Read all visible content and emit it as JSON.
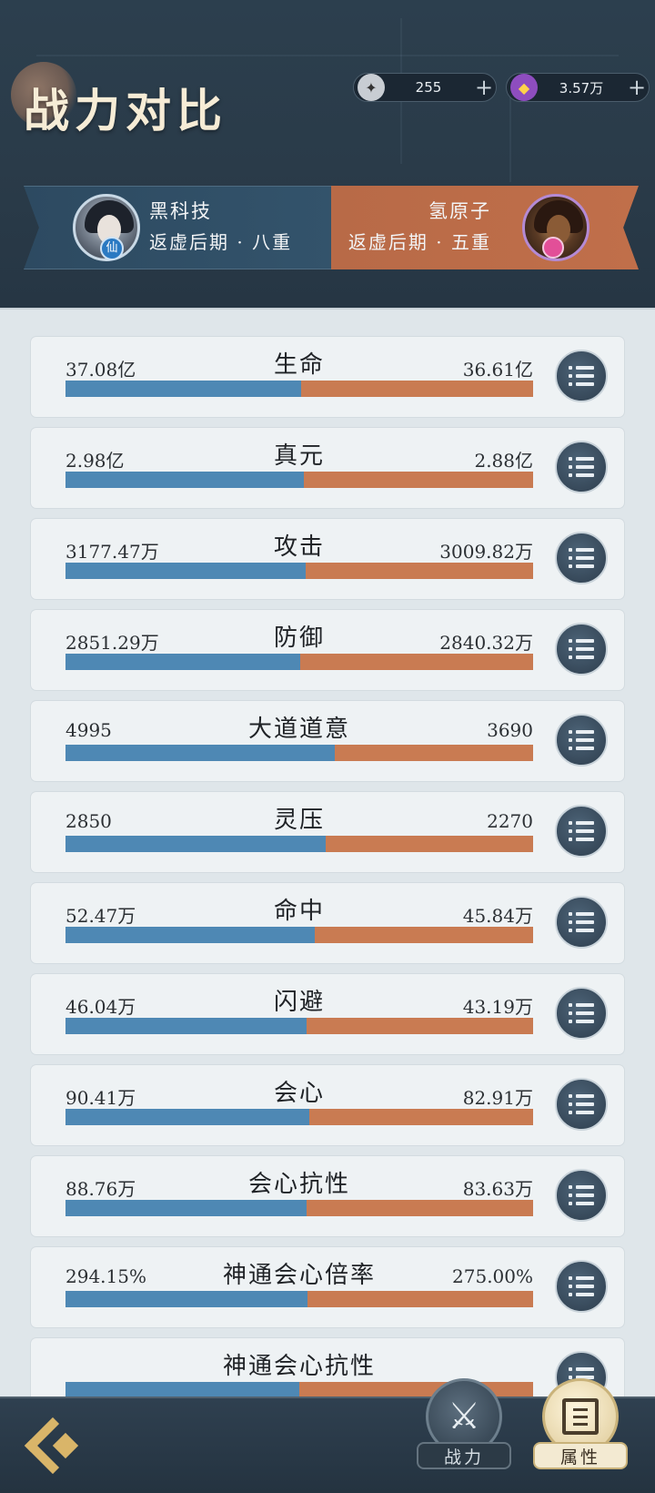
{
  "header": {
    "title": "战力对比",
    "currencies": [
      {
        "icon": "spirit-stone-icon",
        "value": "255"
      },
      {
        "icon": "purple-gem-icon",
        "value": "3.57万"
      }
    ],
    "left_player": {
      "name": "黑科技",
      "rank": "返虚后期 · 八重",
      "badge": "仙"
    },
    "right_player": {
      "name": "氢原子",
      "rank": "返虚后期 · 五重"
    }
  },
  "stats": [
    {
      "label": "生命",
      "left": "37.08亿",
      "right": "36.61亿",
      "left_share": 0.503
    },
    {
      "label": "真元",
      "left": "2.98亿",
      "right": "2.88亿",
      "left_share": 0.509
    },
    {
      "label": "攻击",
      "left": "3177.47万",
      "right": "3009.82万",
      "left_share": 0.513
    },
    {
      "label": "防御",
      "left": "2851.29万",
      "right": "2840.32万",
      "left_share": 0.501
    },
    {
      "label": "大道道意",
      "left": "4995",
      "right": "3690",
      "left_share": 0.575
    },
    {
      "label": "灵压",
      "left": "2850",
      "right": "2270",
      "left_share": 0.556
    },
    {
      "label": "命中",
      "left": "52.47万",
      "right": "45.84万",
      "left_share": 0.534
    },
    {
      "label": "闪避",
      "left": "46.04万",
      "right": "43.19万",
      "left_share": 0.515
    },
    {
      "label": "会心",
      "left": "90.41万",
      "right": "82.91万",
      "left_share": 0.521
    },
    {
      "label": "会心抗性",
      "left": "88.76万",
      "right": "83.63万",
      "left_share": 0.515
    },
    {
      "label": "神通会心倍率",
      "left": "294.15%",
      "right": "275.00%",
      "left_share": 0.517
    },
    {
      "label": "神通会心抗性",
      "left": "",
      "right": "",
      "left_share": 0.5
    }
  ],
  "tabs": [
    {
      "label": "战力",
      "active": false
    },
    {
      "label": "属性",
      "active": true
    }
  ],
  "colors": {
    "left_bar": "#4e88b4",
    "right_bar": "#c97b52"
  }
}
